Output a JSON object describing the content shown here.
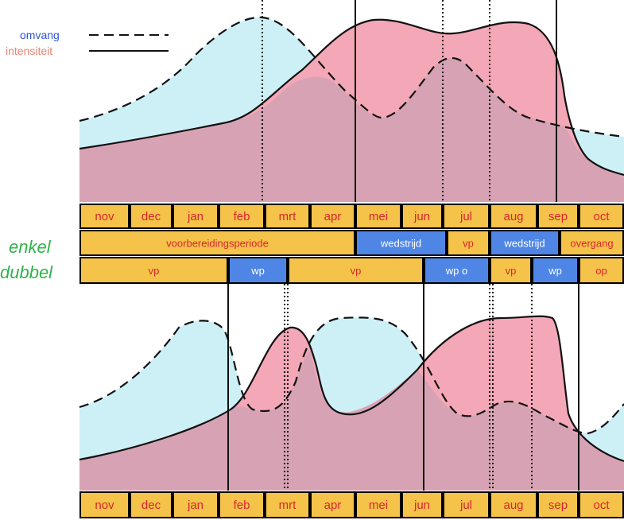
{
  "legend": {
    "volume_label": "omvang",
    "intensity_label": "intensiteit",
    "volume_color": "#2f56d8",
    "intensity_color": "#e8836f"
  },
  "months": [
    "nov",
    "dec",
    "jan",
    "feb",
    "mrt",
    "apr",
    "mei",
    "jun",
    "jul",
    "aug",
    "sep",
    "oct"
  ],
  "rows": {
    "single_label": "enkel",
    "double_label": "dubbel",
    "single_periods": [
      {
        "label": "voorbereidingsperiode",
        "kind": "prep"
      },
      {
        "label": "wedstrijd",
        "kind": "comp"
      },
      {
        "label": "vp",
        "kind": "prep"
      },
      {
        "label": "wedstrijd",
        "kind": "comp"
      },
      {
        "label": "overgang",
        "kind": "prep"
      }
    ],
    "double_periods": [
      {
        "label": "vp",
        "kind": "prep"
      },
      {
        "label": "wp",
        "kind": "comp"
      },
      {
        "label": "vp",
        "kind": "prep"
      },
      {
        "label": "wp o",
        "kind": "comp"
      },
      {
        "label": "vp",
        "kind": "prep"
      },
      {
        "label": "wp",
        "kind": "comp"
      },
      {
        "label": "op",
        "kind": "prep"
      }
    ]
  },
  "colors": {
    "month_cell": "#f5c24a",
    "prep_cell": "#f5c24a",
    "comp_cell": "#4f86e6",
    "volume_fill": "#cdeff6",
    "intensity_fill": "#f4a7b6",
    "overlap_fill": "#d7a3b4",
    "label_red": "#d8262e",
    "side_green": "#2fb34a"
  }
}
